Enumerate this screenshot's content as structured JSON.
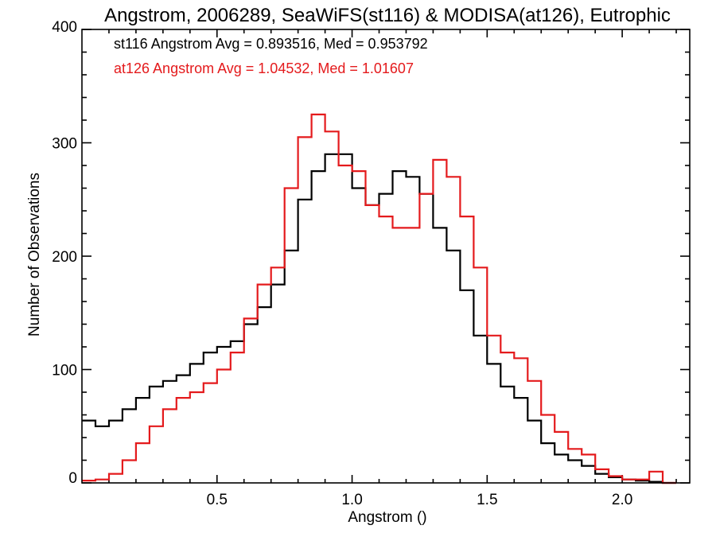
{
  "chart_data": {
    "type": "line",
    "title": "Angstrom, 2006289, SeaWiFS(st116) & MODISA(at126), Eutrophic",
    "xlabel": "Angstrom ()",
    "ylabel": "Number of Observations",
    "xlim": [
      0.0,
      2.25
    ],
    "ylim": [
      0,
      400
    ],
    "xticks": [
      0.5,
      1.0,
      1.5,
      2.0
    ],
    "xtick_labels": [
      "0.5",
      "1.0",
      "1.5",
      "2.0"
    ],
    "yticks": [
      0,
      100,
      200,
      300,
      400
    ],
    "ytick_labels": [
      "0",
      "100",
      "200",
      "300",
      "400"
    ],
    "grid": false,
    "legend_position": "top-left",
    "annotations": [
      {
        "text": "st116 Angstrom Avg = 0.893516, Med = 0.953792",
        "color": "#000000"
      },
      {
        "text": "at126 Angstrom Avg = 1.04532, Med = 1.01607",
        "color": "#e41a1c"
      }
    ],
    "series": [
      {
        "name": "st116",
        "color": "#000000",
        "step": "post",
        "x": [
          0.0,
          0.05,
          0.1,
          0.15,
          0.2,
          0.25,
          0.3,
          0.35,
          0.4,
          0.45,
          0.5,
          0.55,
          0.6,
          0.65,
          0.7,
          0.75,
          0.8,
          0.85,
          0.9,
          0.95,
          1.0,
          1.05,
          1.1,
          1.15,
          1.2,
          1.25,
          1.3,
          1.35,
          1.4,
          1.45,
          1.5,
          1.55,
          1.6,
          1.65,
          1.7,
          1.75,
          1.8,
          1.85,
          1.9,
          1.95,
          2.0,
          2.05,
          2.1,
          2.15
        ],
        "values": [
          55,
          50,
          55,
          65,
          75,
          85,
          90,
          95,
          105,
          115,
          120,
          125,
          140,
          155,
          175,
          205,
          250,
          275,
          290,
          290,
          260,
          245,
          255,
          275,
          270,
          255,
          225,
          205,
          170,
          130,
          105,
          85,
          75,
          55,
          35,
          25,
          20,
          15,
          8,
          5,
          3,
          2,
          1,
          0
        ]
      },
      {
        "name": "at126",
        "color": "#e41a1c",
        "step": "post",
        "x": [
          0.0,
          0.05,
          0.1,
          0.15,
          0.2,
          0.25,
          0.3,
          0.35,
          0.4,
          0.45,
          0.5,
          0.55,
          0.6,
          0.65,
          0.7,
          0.75,
          0.8,
          0.85,
          0.9,
          0.95,
          1.0,
          1.05,
          1.1,
          1.15,
          1.2,
          1.25,
          1.3,
          1.35,
          1.4,
          1.45,
          1.5,
          1.55,
          1.6,
          1.65,
          1.7,
          1.75,
          1.8,
          1.85,
          1.9,
          1.95,
          2.0,
          2.05,
          2.1,
          2.15
        ],
        "values": [
          2,
          3,
          8,
          20,
          35,
          50,
          65,
          75,
          80,
          88,
          100,
          115,
          145,
          175,
          190,
          260,
          305,
          325,
          310,
          280,
          275,
          245,
          235,
          225,
          225,
          255,
          285,
          270,
          235,
          190,
          130,
          115,
          110,
          90,
          60,
          45,
          30,
          25,
          12,
          6,
          3,
          3,
          10,
          0
        ]
      }
    ]
  }
}
